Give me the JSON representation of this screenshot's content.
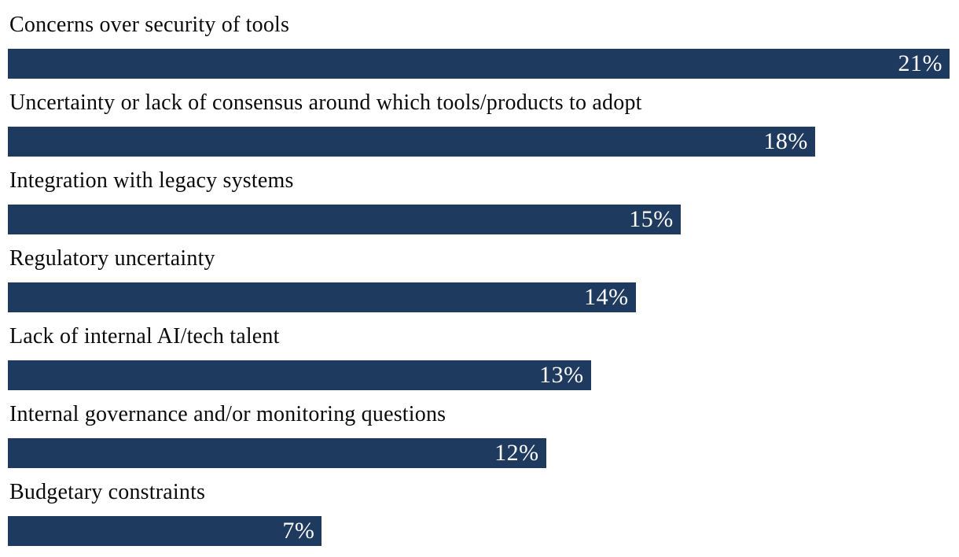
{
  "chart_data": {
    "type": "bar",
    "orientation": "horizontal",
    "title": "",
    "xlabel": "",
    "ylabel": "",
    "value_axis_max": 21,
    "grid": false,
    "legend": false,
    "bar_color": "#1f3a5f",
    "value_label_color": "#ffffff",
    "category_label_color": "#0a0a0a",
    "categories": [
      "Concerns over security of tools",
      "Uncertainty or lack of consensus around which tools/products to adopt",
      "Integration with legacy systems",
      "Regulatory uncertainty",
      "Lack of internal AI/tech talent",
      "Internal governance and/or monitoring questions",
      "Budgetary constraints"
    ],
    "values": [
      21,
      18,
      15,
      14,
      13,
      12,
      7
    ],
    "items": [
      {
        "label": "Concerns over security of tools",
        "value": 21,
        "value_label": "21%"
      },
      {
        "label": "Uncertainty or lack of consensus around which tools/products to adopt",
        "value": 18,
        "value_label": "18%"
      },
      {
        "label": "Integration with legacy systems",
        "value": 15,
        "value_label": "15%"
      },
      {
        "label": "Regulatory uncertainty",
        "value": 14,
        "value_label": "14%"
      },
      {
        "label": "Lack of internal AI/tech talent",
        "value": 13,
        "value_label": "13%"
      },
      {
        "label": "Internal governance and/or monitoring questions",
        "value": 12,
        "value_label": "12%"
      },
      {
        "label": "Budgetary constraints",
        "value": 7,
        "value_label": "7%"
      }
    ]
  }
}
